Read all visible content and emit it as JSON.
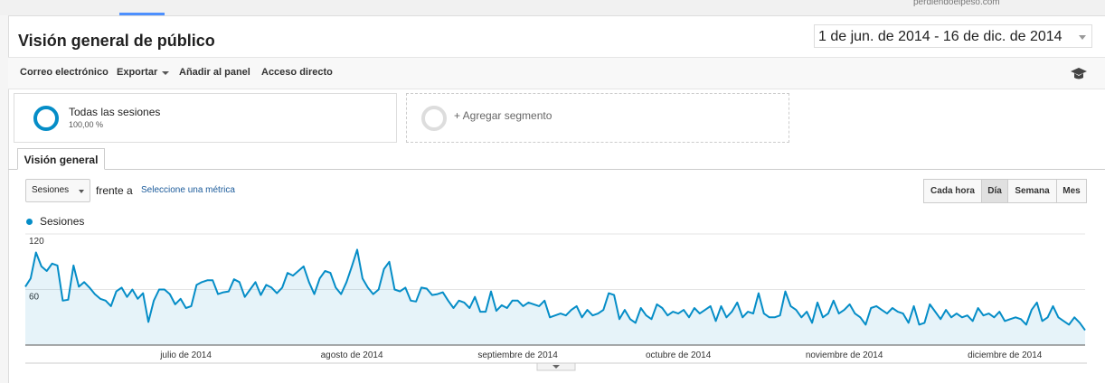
{
  "header": {
    "site": "perdiendoelpeso.com",
    "title": "Visión general de público",
    "date_range": "1 de jun. de 2014 - 16 de dic. de 2014"
  },
  "toolbar": [
    "Correo electrónico",
    "Exportar",
    "Añadir al panel",
    "Acceso directo"
  ],
  "segments": {
    "active": {
      "name": "Todas las sesiones",
      "share": "100,00 %"
    },
    "add": "+ Agregar segmento"
  },
  "tab": "Visión general",
  "controls": {
    "metric": "Sesiones",
    "versus": "frente a",
    "select_metric": "Seleccione una métrica",
    "granularity": [
      "Cada hora",
      "Día",
      "Semana",
      "Mes"
    ]
  },
  "chart_data": {
    "type": "line",
    "series": [
      {
        "name": "Sesiones",
        "color": "#058dc7",
        "values": [
          63,
          72,
          100,
          85,
          80,
          88,
          86,
          48,
          49,
          86,
          63,
          68,
          62,
          55,
          50,
          48,
          42,
          58,
          62,
          52,
          60,
          50,
          56,
          25,
          48,
          60,
          60,
          55,
          44,
          50,
          40,
          42,
          65,
          68,
          70,
          70,
          55,
          57,
          58,
          71,
          68,
          52,
          60,
          68,
          54,
          65,
          62,
          56,
          62,
          78,
          75,
          80,
          85,
          68,
          55,
          72,
          80,
          78,
          62,
          55,
          68,
          85,
          103,
          72,
          62,
          55,
          60,
          82,
          90,
          60,
          58,
          62,
          48,
          47,
          62,
          61,
          54,
          55,
          57,
          48,
          40,
          48,
          46,
          40,
          52,
          36,
          36,
          58,
          37,
          43,
          40,
          48,
          48,
          42,
          46,
          44,
          42,
          48,
          30,
          32,
          34,
          32,
          38,
          42,
          30,
          38,
          32,
          34,
          38,
          56,
          54,
          28,
          38,
          28,
          24,
          40,
          32,
          28,
          44,
          40,
          32,
          36,
          34,
          38,
          30,
          40,
          34,
          38,
          42,
          26,
          42,
          30,
          36,
          46,
          30,
          36,
          34,
          56,
          34,
          30,
          30,
          32,
          58,
          42,
          38,
          30,
          36,
          24,
          46,
          30,
          34,
          48,
          34,
          38,
          44,
          34,
          30,
          22,
          40,
          42,
          38,
          34,
          40,
          36,
          34,
          24,
          42,
          22,
          24,
          44,
          36,
          28,
          38,
          30,
          34,
          30,
          32,
          26,
          40,
          32,
          34,
          30,
          36,
          26,
          28,
          30,
          28,
          22,
          38,
          46,
          26,
          30,
          42,
          30,
          26,
          22,
          30,
          24,
          16
        ]
      }
    ],
    "ylim": [
      0,
      120
    ],
    "yticks": [
      60,
      120
    ],
    "xlim": [
      0,
      198
    ],
    "xticks": [
      {
        "value": 30,
        "label": "julio de 2014"
      },
      {
        "value": 61,
        "label": "agosto de 2014"
      },
      {
        "value": 92,
        "label": "septiembre de 2014"
      },
      {
        "value": 122,
        "label": "octubre de 2014"
      },
      {
        "value": 153,
        "label": "noviembre de 2014"
      },
      {
        "value": 183,
        "label": "diciembre de 2014"
      }
    ],
    "grid": true
  }
}
